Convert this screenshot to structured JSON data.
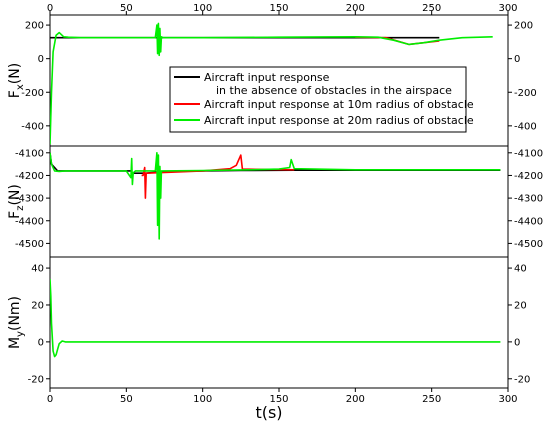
{
  "chart_data": {
    "type": "line",
    "xlabel": "t(s)",
    "xlim": [
      0,
      300
    ],
    "xticks": [
      0,
      50,
      100,
      150,
      200,
      250,
      300
    ],
    "legend": {
      "placement": "inside-top-right of first panel",
      "entries": [
        {
          "line1": "Aircraft input response",
          "line2": "in the absence of obstacles in the airspace",
          "color": "#000000"
        },
        {
          "line1": "Aircraft input response at 10m radius of obstacle",
          "line2": "",
          "color": "#ff0000"
        },
        {
          "line1": "Aircraft input response at 20m radius of obstacle",
          "line2": "",
          "color": "#00ee00"
        }
      ]
    },
    "panels": [
      {
        "id": "fx",
        "ylabel_main": "F",
        "ylabel_sub": "x",
        "ylabel_unit": "(N)",
        "ylim": [
          -520,
          260
        ],
        "yticks": [
          200,
          0,
          -200,
          -400
        ],
        "series": [
          {
            "color": "#000000",
            "x": [
              0,
              255
            ],
            "y": [
              125,
              125
            ]
          },
          {
            "color": "#ff0000",
            "x": [
              200,
              220,
              235,
              245,
              255
            ],
            "y": [
              128,
              125,
              85,
              95,
              105
            ]
          },
          {
            "color": "#00ee00",
            "x": [
              0,
              1,
              2,
              4,
              6,
              9,
              12,
              20,
              50,
              69,
              70,
              70.5,
              71,
              71.5,
              72,
              72.5,
              73,
              74,
              100,
              150,
              200,
              215,
              225,
              235,
              245,
              255,
              270,
              290
            ],
            "y": [
              -510,
              -200,
              40,
              140,
              155,
              130,
              128,
              125,
              125,
              125,
              200,
              30,
              210,
              20,
              180,
              40,
              130,
              125,
              125,
              128,
              130,
              128,
              110,
              85,
              95,
              110,
              125,
              130
            ]
          }
        ]
      },
      {
        "id": "fz",
        "ylabel_main": "F",
        "ylabel_sub": "z",
        "ylabel_unit": "(N)",
        "ylim": [
          -4560,
          -4070
        ],
        "yticks": [
          -4100,
          -4200,
          -4300,
          -4400,
          -4500
        ],
        "series": [
          {
            "color": "#000000",
            "x": [
              0,
              1,
              5,
              20,
              53,
              54,
              62,
              62.5,
              63,
              70,
              80,
              100,
              125,
              160,
              200,
              295
            ],
            "y": [
              -4100,
              -4150,
              -4180,
              -4180,
              -4180,
              -4190,
              -4190,
              -4200,
              -4190,
              -4185,
              -4182,
              -4180,
              -4178,
              -4177,
              -4177,
              -4177
            ]
          },
          {
            "color": "#ff0000",
            "x": [
              60,
              61,
              62,
              62.5,
              63,
              100,
              118,
              122,
              125,
              126,
              160
            ],
            "y": [
              -4200,
              -4200,
              -4165,
              -4300,
              -4190,
              -4180,
              -4170,
              -4155,
              -4110,
              -4172,
              -4175
            ]
          },
          {
            "color": "#00ee00",
            "x": [
              0,
              1,
              3,
              6,
              10,
              20,
              50,
              53,
              53.5,
              54,
              54.5,
              55,
              56,
              69,
              70,
              70.5,
              71,
              71.5,
              72,
              72.5,
              73,
              74,
              100,
              130,
              150,
              157,
              158,
              160,
              200,
              250,
              295
            ],
            "y": [
              -4100,
              -4150,
              -4180,
              -4182,
              -4180,
              -4180,
              -4180,
              -4210,
              -4125,
              -4240,
              -4190,
              -4185,
              -4180,
              -4180,
              -4100,
              -4420,
              -4110,
              -4480,
              -4160,
              -4300,
              -4180,
              -4180,
              -4178,
              -4175,
              -4172,
              -4165,
              -4130,
              -4170,
              -4175,
              -4175,
              -4175
            ]
          }
        ]
      },
      {
        "id": "my",
        "ylabel_main": "M",
        "ylabel_sub": "y",
        "ylabel_unit": "(Nm)",
        "ylim": [
          -25,
          46
        ],
        "yticks": [
          40,
          20,
          0,
          -20
        ],
        "series": [
          {
            "color": "#00ee00",
            "x": [
              0,
              0.5,
              1,
              2,
              3,
              4,
              5,
              6,
              8,
              10,
              15,
              30,
              295
            ],
            "y": [
              34,
              25,
              10,
              -5,
              -8,
              -7,
              -4,
              -1,
              0.5,
              0,
              0,
              0,
              0
            ]
          }
        ]
      }
    ]
  }
}
